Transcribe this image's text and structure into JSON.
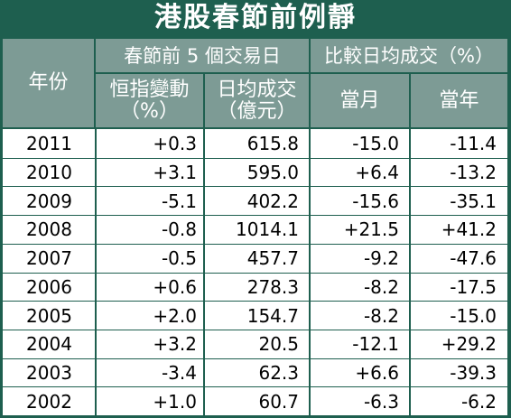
{
  "title": "港股春節前例靜",
  "header": {
    "year_label": "年份",
    "group1_label": "春節前 5 個交易日",
    "group2_label": "比較日均成交（%）",
    "col_change_line1": "恒指變動",
    "col_change_line2": "（%）",
    "col_turnover_line1": "日均成交",
    "col_turnover_line2": "（億元）",
    "col_month": "當月",
    "col_year": "當年"
  },
  "rows": [
    {
      "year": "2011",
      "change": "+0.3",
      "turnover": "615.8",
      "vs_month": "-15.0",
      "vs_year": "-11.4"
    },
    {
      "year": "2010",
      "change": "+3.1",
      "turnover": "595.0",
      "vs_month": "+6.4",
      "vs_year": "-13.2"
    },
    {
      "year": "2009",
      "change": "-5.1",
      "turnover": "402.2",
      "vs_month": "-15.6",
      "vs_year": "-35.1"
    },
    {
      "year": "2008",
      "change": "-0.8",
      "turnover": "1014.1",
      "vs_month": "+21.5",
      "vs_year": "+41.2"
    },
    {
      "year": "2007",
      "change": "-0.5",
      "turnover": "457.7",
      "vs_month": "-9.2",
      "vs_year": "-47.6"
    },
    {
      "year": "2006",
      "change": "+0.6",
      "turnover": "278.3",
      "vs_month": "-8.2",
      "vs_year": "-17.5"
    },
    {
      "year": "2005",
      "change": "+2.0",
      "turnover": "154.7",
      "vs_month": "-8.2",
      "vs_year": "-15.0"
    },
    {
      "year": "2004",
      "change": "+3.2",
      "turnover": "20.5",
      "vs_month": "-12.1",
      "vs_year": "+29.2"
    },
    {
      "year": "2003",
      "change": "-3.4",
      "turnover": "62.3",
      "vs_month": "+6.6",
      "vs_year": "-39.3"
    },
    {
      "year": "2002",
      "change": "+1.0",
      "turnover": "60.7",
      "vs_month": "-6.3",
      "vs_year": "-6.2"
    }
  ],
  "colors": {
    "frame": "#1e5f4f",
    "header_bg": "#7d9b95",
    "body_bg": "#ffffff"
  }
}
